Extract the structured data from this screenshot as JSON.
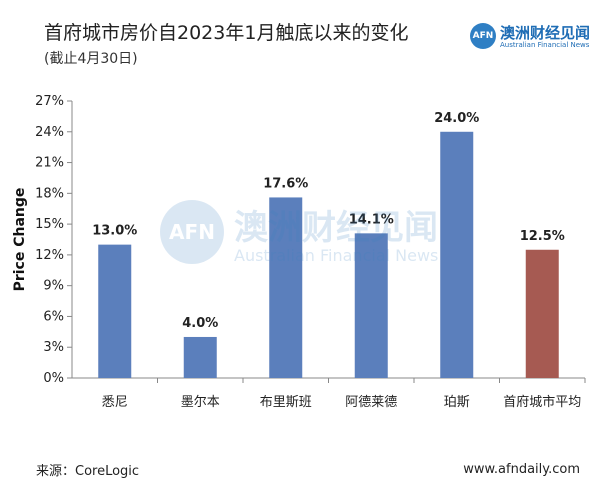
{
  "header": {
    "title": "首府城市房价自2023年1月触底以来的变化",
    "subtitle": "(截止4月30日)"
  },
  "logo": {
    "mark": "AFN",
    "name_cn": "澳洲财经见闻",
    "name_en": "Australian Financial News"
  },
  "watermark": {
    "mark": "AFN",
    "name_cn": "澳洲财经见闻",
    "name_en": "Australian Financial News"
  },
  "footer": {
    "source": "来源：CoreLogic",
    "website": "www.afndaily.com"
  },
  "colors": {
    "bar_primary": "#5b7fbc",
    "bar_highlight": "#a65a52",
    "axis": "#888888"
  },
  "chart_data": {
    "type": "bar",
    "title": "首府城市房价自2023年1月触底以来的变化",
    "subtitle": "(截止4月30日)",
    "xlabel": "",
    "ylabel": "Price Change",
    "categories": [
      "悉尼",
      "墨尔本",
      "布里斯班",
      "阿德莱德",
      "珀斯",
      "首府城市平均"
    ],
    "values": [
      13.0,
      4.0,
      17.6,
      14.1,
      24.0,
      12.5
    ],
    "value_labels": [
      "13.0%",
      "4.0%",
      "17.6%",
      "14.1%",
      "24.0%",
      "12.5%"
    ],
    "bar_colors": [
      "#5b7fbc",
      "#5b7fbc",
      "#5b7fbc",
      "#5b7fbc",
      "#5b7fbc",
      "#a65a52"
    ],
    "ylim": [
      0,
      27
    ],
    "yticks": [
      0,
      3,
      6,
      9,
      12,
      15,
      18,
      21,
      24,
      27
    ],
    "ytick_labels": [
      "0%",
      "3%",
      "6%",
      "9%",
      "12%",
      "15%",
      "18%",
      "21%",
      "24%",
      "27%"
    ],
    "grid": false,
    "legend": "none"
  }
}
